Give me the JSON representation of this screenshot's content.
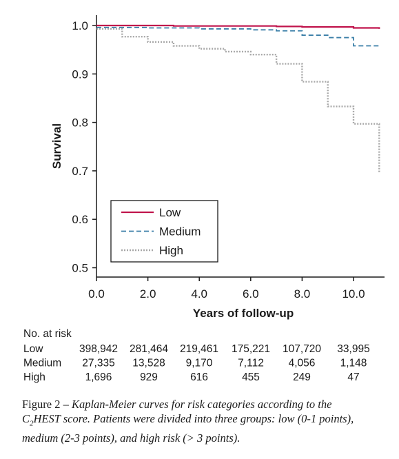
{
  "chart_data": {
    "type": "line",
    "subtype": "kaplan-meier step",
    "xlabel": "Years of follow-up",
    "ylabel": "Survival",
    "xlim": [
      0,
      11.2
    ],
    "ylim": [
      0.5,
      1.0
    ],
    "x_ticks": [
      "0.0",
      "2.0",
      "4.0",
      "6.0",
      "8.0",
      "10.0"
    ],
    "y_ticks": [
      "0.5",
      "0.6",
      "0.7",
      "0.8",
      "0.9",
      "1.0"
    ],
    "grid": false,
    "legend_position": "lower-left",
    "series": [
      {
        "name": "Low",
        "color": "#c0144c",
        "style": "solid",
        "x": [
          0,
          3,
          7,
          8,
          10,
          11
        ],
        "y": [
          1.0,
          0.999,
          0.998,
          0.997,
          0.995,
          0.993
        ]
      },
      {
        "name": "Medium",
        "color": "#3b7fa8",
        "style": "dashed",
        "x": [
          0,
          2,
          4,
          6,
          7,
          8,
          9,
          10,
          11
        ],
        "y": [
          0.996,
          0.995,
          0.993,
          0.991,
          0.989,
          0.98,
          0.975,
          0.958,
          0.957
        ]
      },
      {
        "name": "High",
        "color": "#a8a8a8",
        "style": "dotted",
        "x": [
          0,
          1,
          2,
          3,
          4,
          5,
          6,
          7,
          8,
          9,
          10,
          11
        ],
        "y": [
          0.993,
          0.977,
          0.966,
          0.958,
          0.952,
          0.946,
          0.94,
          0.921,
          0.884,
          0.833,
          0.797,
          0.697
        ]
      }
    ],
    "risk_table": {
      "title": "No. at risk",
      "rows": [
        {
          "label": "Low",
          "values": [
            "398,942",
            "281,464",
            "219,461",
            "175,221",
            "107,720",
            "33,995"
          ]
        },
        {
          "label": "Medium",
          "values": [
            "27,335",
            "13,528",
            "9,170",
            "7,112",
            "4,056",
            "1,148"
          ]
        },
        {
          "label": "High",
          "values": [
            "1,696",
            "929",
            "616",
            "455",
            "249",
            "47"
          ]
        }
      ]
    }
  },
  "caption": {
    "prefix": "Figure 2 – ",
    "part1": "Kaplan-Meier curves for risk categories according to the",
    "c2_c": "C",
    "c2_sub": "2",
    "part2": "HEST score. Patients were divided into three groups: low (0-1 points),",
    "line3": "medium (2-3 points), and high risk (> 3 points)."
  }
}
